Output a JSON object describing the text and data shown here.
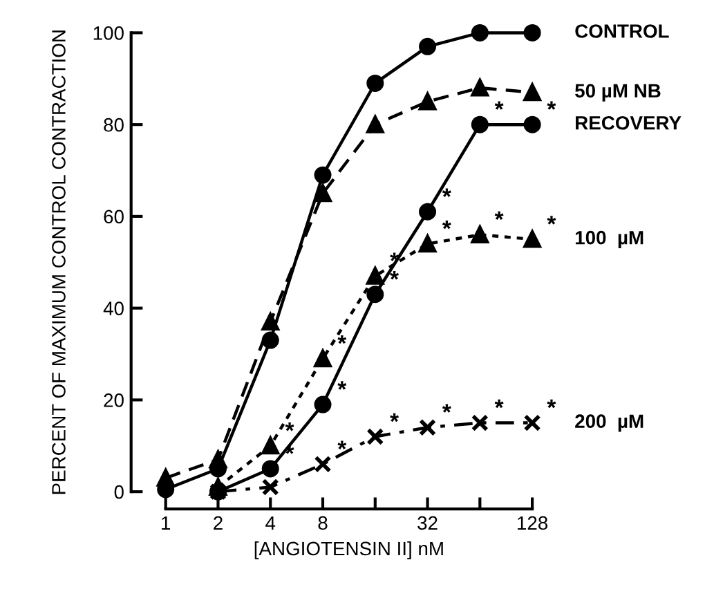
{
  "chart_data": {
    "type": "line",
    "xlabel": "[ANGIOTENSIN II] nM",
    "ylabel": "PERCENT OF MAXIMUM CONTROL CONTRACTION",
    "log": "x",
    "xlim": [
      1,
      128
    ],
    "ylim": [
      0,
      100
    ],
    "xticks": [
      1,
      2,
      4,
      8,
      {
        "value": 16,
        "label": null
      },
      32,
      {
        "value": 64,
        "label": null
      },
      128
    ],
    "yticks": [
      0,
      20,
      40,
      60,
      80,
      100
    ],
    "grid": false,
    "legend": false,
    "series": [
      {
        "name": "CONTROL",
        "color": "#000000",
        "marker": "circle",
        "line_style": "solid",
        "x": [
          1,
          2,
          4,
          8,
          16,
          32,
          64,
          128
        ],
        "values": [
          0.5,
          5,
          33,
          69,
          89,
          97,
          100,
          100
        ]
      },
      {
        "name": "50 µM NB",
        "color": "#000000",
        "marker": "triangle",
        "line_style": "dashed",
        "x": [
          1,
          2,
          4,
          8,
          16,
          32,
          64,
          128
        ],
        "values": [
          3,
          7,
          37,
          65,
          80,
          85,
          88,
          87
        ]
      },
      {
        "name": "RECOVERY",
        "color": "#000000",
        "marker": "circle",
        "line_style": "solid",
        "x": [
          2,
          4,
          8,
          16,
          32,
          64,
          128
        ],
        "values": [
          0,
          5,
          19,
          43,
          61,
          80,
          80
        ]
      },
      {
        "name": "100  µM",
        "color": "#000000",
        "marker": "triangle",
        "line_style": "dotted",
        "x": [
          2,
          4,
          8,
          16,
          32,
          64,
          128
        ],
        "values": [
          1,
          10,
          29,
          47,
          54,
          56,
          55
        ]
      },
      {
        "name": "200  µM",
        "color": "#000000",
        "marker": "cross",
        "line_style": "dashdot",
        "x": [
          2,
          4,
          8,
          16,
          32,
          64,
          128
        ],
        "values": [
          0,
          1,
          6,
          12,
          14,
          15,
          15
        ]
      }
    ],
    "annotations": [
      {
        "text": "*",
        "x": 4,
        "y": 10
      },
      {
        "text": "*",
        "x": 4,
        "y": 5
      },
      {
        "text": "*",
        "x": 8,
        "y": 29
      },
      {
        "text": "*",
        "x": 8,
        "y": 6
      },
      {
        "text": "*",
        "x": 8,
        "y": 19
      },
      {
        "text": "*",
        "x": 16,
        "y": 47
      },
      {
        "text": "*",
        "x": 16,
        "y": 12
      },
      {
        "text": "*",
        "x": 16,
        "y": 43
      },
      {
        "text": "*",
        "x": 32,
        "y": 14
      },
      {
        "text": "*",
        "x": 32,
        "y": 54
      },
      {
        "text": "*",
        "x": 32,
        "y": 61
      },
      {
        "text": "*",
        "x": 64,
        "y": 15
      },
      {
        "text": "*",
        "x": 64,
        "y": 56
      },
      {
        "text": "*",
        "x": 64,
        "y": 80
      },
      {
        "text": "*",
        "x": 128,
        "y": 15
      },
      {
        "text": "*",
        "x": 128,
        "y": 55
      },
      {
        "text": "*",
        "x": 128,
        "y": 80
      }
    ]
  }
}
